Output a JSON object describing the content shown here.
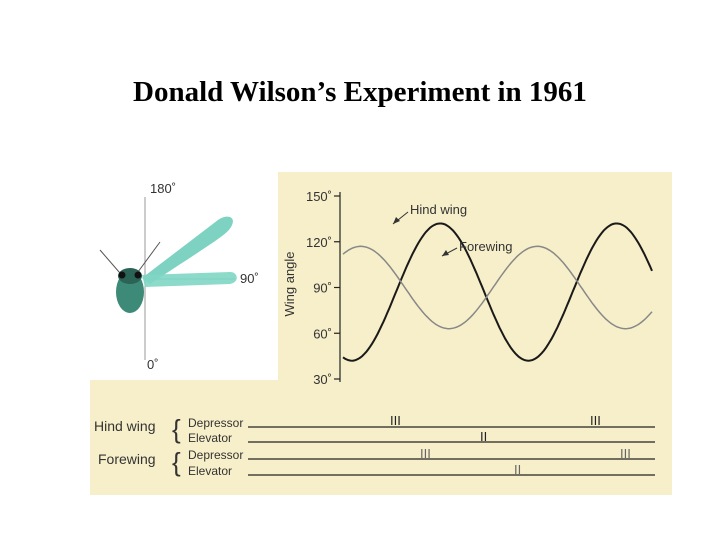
{
  "slide": {
    "title": "Donald Wilson’s Experiment in 1961"
  },
  "colors": {
    "background_panel": "#f7efc9",
    "wing_teal": "#5ec7b3",
    "line_dark": "#1a1a1a",
    "line_gray": "#888888"
  },
  "insect_diagram": {
    "angle_top": "180˚",
    "angle_right": "90˚",
    "angle_bottom": "0˚"
  },
  "chart_data": {
    "type": "line",
    "ylabel": "Wing angle",
    "yticks": [
      "150˚",
      "120˚",
      "90˚",
      "60˚",
      "30˚"
    ],
    "ylim": [
      30,
      150
    ],
    "series": [
      {
        "name": "Hind wing",
        "amplitude": 45,
        "center": 87,
        "cycles": 1.75
      },
      {
        "name": "Forewing",
        "amplitude": 27,
        "center": 90,
        "cycles": 1.75
      }
    ]
  },
  "muscle_activity": {
    "rows": [
      {
        "group": "Hind wing",
        "muscle": "Depressor",
        "bursts": [
          "III",
          "III"
        ]
      },
      {
        "group": "Hind wing",
        "muscle": "Elevator",
        "bursts": [
          "II"
        ]
      },
      {
        "group": "Forewing",
        "muscle": "Depressor",
        "bursts": [
          "III",
          "III"
        ]
      },
      {
        "group": "Forewing",
        "muscle": "Elevator",
        "bursts": [
          "II"
        ]
      }
    ]
  }
}
